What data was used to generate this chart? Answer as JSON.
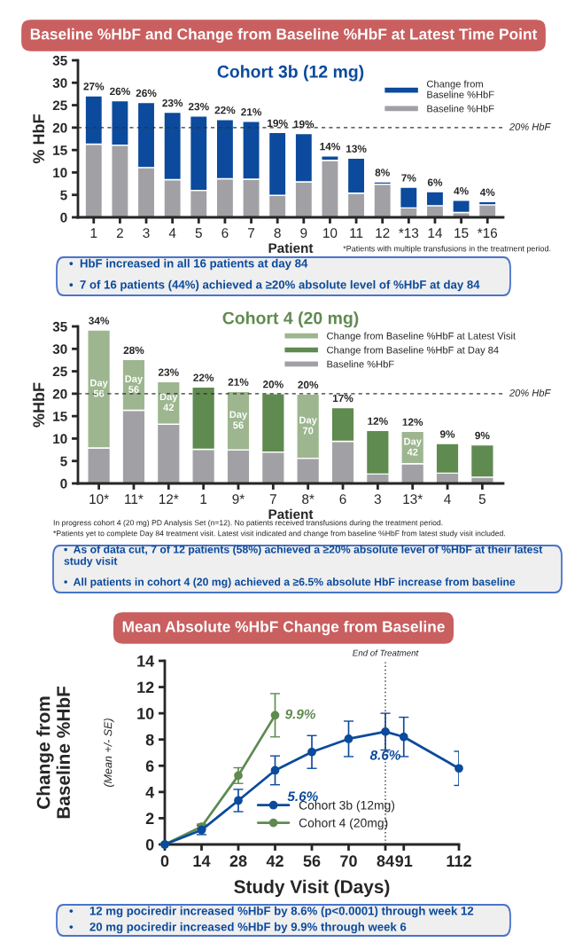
{
  "chart_data": [
    {
      "type": "bar",
      "title": "Cohort 3b (12 mg)",
      "xlabel": "Patient",
      "ylabel": "% HbF",
      "stacked": true,
      "categories": [
        "1",
        "2",
        "3",
        "4",
        "5",
        "6",
        "7",
        "8",
        "9",
        "10",
        "11",
        "12",
        "*13",
        "14",
        "15",
        "*16"
      ],
      "series": [
        {
          "name": "Baseline %HbF",
          "color": "#a1a1a5",
          "values": [
            16.3,
            16.1,
            11.1,
            8.4,
            6.0,
            8.6,
            8.5,
            4.9,
            7.9,
            12.7,
            5.4,
            7.4,
            2.1,
            2.6,
            1.1,
            2.8
          ]
        },
        {
          "name": "Change from\nBaseline %HbF",
          "color": "#0b4a9c",
          "values": [
            10.8,
            9.9,
            14.5,
            15.0,
            16.6,
            13.2,
            12.9,
            14.0,
            10.8,
            1.0,
            7.8,
            0.5,
            4.6,
            3.1,
            2.7,
            0.7
          ]
        }
      ],
      "totals": [
        "27%",
        "26%",
        "26%",
        "23%",
        "23%",
        "22%",
        "21%",
        "19%",
        "19%",
        "14%",
        "13%",
        "8%",
        "7%",
        "6%",
        "4%",
        "4%"
      ],
      "ylim": [
        0,
        35
      ],
      "yticks": [
        0,
        5,
        10,
        15,
        20,
        25,
        30,
        35
      ],
      "grid": false,
      "legend": "top right",
      "ref_lines": [
        {
          "axis": "y",
          "value": 20,
          "label": "20% HbF",
          "line_style": "dashed"
        }
      ],
      "annotations": [
        "Baseline %HbF and Change from Baseline %HbF at Latest Time Point",
        "*Patients with multiple transfusions in the treatment period.",
        "•  HbF increased in all 16 patients at day 84",
        "•  7 of 16 patients (44%) achieved a ≥20% absolute level of %HbF at day 84"
      ]
    },
    {
      "type": "bar",
      "title": "Cohort 4 (20 mg)",
      "xlabel": "Patient",
      "ylabel": "%HbF",
      "stacked": true,
      "categories": [
        "10*",
        "11*",
        "12*",
        "1",
        "9*",
        "7",
        "8*",
        "6",
        "3",
        "13*",
        "4",
        "5"
      ],
      "series": [
        {
          "name": "Baseline %HbF",
          "color": "#a1a1a5",
          "values": [
            7.9,
            16.3,
            13.2,
            7.6,
            7.5,
            7.0,
            5.6,
            9.4,
            2.1,
            4.4,
            2.3,
            1.4
          ]
        },
        {
          "name": "Change from Baseline %HbF at Day 84",
          "color": "#5f8a50",
          "values": [
            null,
            null,
            null,
            13.9,
            null,
            13.0,
            null,
            7.5,
            9.7,
            null,
            6.6,
            7.2
          ]
        },
        {
          "name": "Change from Baseline %HbF at Latest Visit",
          "color": "#9db68f",
          "values": [
            26.3,
            11.3,
            9.5,
            null,
            13.0,
            null,
            14.3,
            null,
            null,
            7.2,
            null,
            null
          ]
        }
      ],
      "totals": [
        "34%",
        "28%",
        "23%",
        "22%",
        "21%",
        "20%",
        "20%",
        "17%",
        "12%",
        "12%",
        "9%",
        "9%"
      ],
      "ylim": [
        0,
        35
      ],
      "yticks": [
        0,
        5,
        10,
        15,
        20,
        25,
        30,
        35
      ],
      "grid": false,
      "legend": "top right",
      "ref_lines": [
        {
          "axis": "y",
          "value": 20,
          "label": "20% HbF",
          "line_style": "dashed"
        }
      ],
      "annotations": [
        "Day\n56",
        "Day\n56",
        "Day\n42",
        "Day\n56",
        "Day\n70",
        "Day\n42",
        "In progress cohort 4 (20 mg) PD Analysis Set (n=12). No patients received transfusions during the treatment period.",
        "*Patients yet to complete Day 84 treatment visit. Latest visit indicated and change from baseline %HbF from latest study visit included.",
        "•  As of data cut, 7 of 12 patients (58%) achieved a ≥20% absolute level of %HbF at their latest study visit",
        "•  All patients in cohort 4 (20 mg) achieved a ≥6.5% absolute HbF increase from baseline"
      ]
    },
    {
      "type": "line",
      "xlabel": "Study Visit (Days)",
      "ylabel": "Change from\nBaseline %HbF",
      "marker": "circle",
      "line_style": "solid",
      "legend": "bottom",
      "grid": false,
      "series": [
        {
          "name": "Cohort 3b (12mg)",
          "color": "#0b4a9c",
          "x": [
            0,
            14,
            28,
            42,
            56,
            70,
            84,
            91,
            112
          ],
          "values": [
            0,
            1.1,
            3.35,
            5.65,
            7.05,
            8.05,
            8.6,
            8.2,
            5.8
          ],
          "errors": [
            null,
            0.35,
            0.85,
            1.1,
            1.25,
            1.35,
            1.4,
            1.5,
            1.3
          ],
          "value_labels": [
            null,
            null,
            null,
            "5.6%",
            null,
            null,
            "8.6%",
            null,
            null
          ]
        },
        {
          "name": "Cohort 4 (20mg)",
          "color": "#5f8a50",
          "x": [
            0,
            14,
            28,
            42
          ],
          "values": [
            0,
            1.35,
            5.25,
            9.85
          ],
          "errors": [
            null,
            0.2,
            0.6,
            1.65
          ],
          "value_labels": [
            null,
            null,
            null,
            "9.9%"
          ]
        }
      ],
      "xlim": [
        0,
        112
      ],
      "xticks": [
        0,
        14,
        28,
        42,
        56,
        70,
        84,
        91,
        112
      ],
      "ylim": [
        0,
        14
      ],
      "yticks": [
        0,
        2,
        4,
        6,
        8,
        10,
        12,
        14
      ],
      "ref_lines": [
        {
          "axis": "x",
          "value": 84,
          "label": "End of Treatment",
          "line_style": "dotted"
        }
      ],
      "annotations": [
        "Mean Absolute %HbF Change from Baseline",
        "(Mean +/- SE)",
        "•     12 mg pociredir increased %HbF by 8.6% (p<0.0001) through week 12",
        "•     20 mg pociredir increased %HbF by 9.9% through week 6"
      ]
    }
  ]
}
